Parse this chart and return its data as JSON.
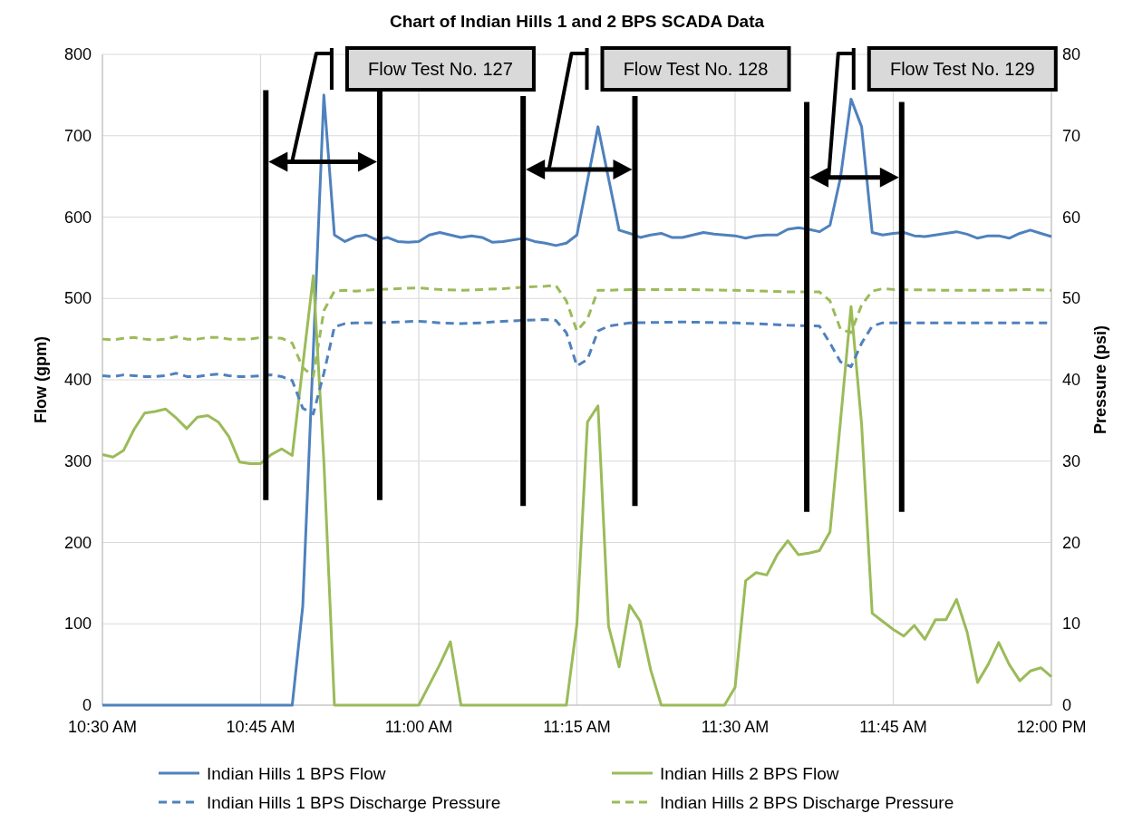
{
  "chart_data": {
    "type": "line",
    "title": "Chart of Indian Hills 1 and 2 BPS SCADA Data",
    "ylabel": "Flow (gpm)",
    "y2label": "Pressure (psi)",
    "xlim": [
      10.5,
      12
    ],
    "xticks": [
      {
        "value": 10.5,
        "label": "10:30 AM"
      },
      {
        "value": 10.75,
        "label": "10:45 AM"
      },
      {
        "value": 11,
        "label": "11:00 AM"
      },
      {
        "value": 11.25,
        "label": "11:15 AM"
      },
      {
        "value": 11.5,
        "label": "11:30 AM"
      },
      {
        "value": 11.75,
        "label": "11:45 AM"
      },
      {
        "value": 12,
        "label": "12:00 PM"
      }
    ],
    "ylim": [
      0,
      800
    ],
    "yticks": [
      0,
      100,
      200,
      300,
      400,
      500,
      600,
      700,
      800
    ],
    "y2lim": [
      0,
      80
    ],
    "y2ticks": [
      0,
      10,
      20,
      30,
      40,
      50,
      60,
      70,
      80
    ],
    "grid": true,
    "legend": "bottom",
    "ref_lines": [
      {
        "axis": "x",
        "value": 10.7583,
        "label": "Flow Test No. 127",
        "color": "#000000"
      },
      {
        "axis": "x",
        "value": 10.9383,
        "color": "#000000"
      },
      {
        "axis": "x",
        "value": 11.165,
        "label": "Flow Test No. 128",
        "color": "#000000"
      },
      {
        "axis": "x",
        "value": 11.3417,
        "color": "#000000"
      },
      {
        "axis": "x",
        "value": 11.6133,
        "label": "Flow Test No. 129",
        "color": "#000000"
      },
      {
        "axis": "x",
        "value": 11.7633,
        "color": "#000000"
      }
    ],
    "series": [
      {
        "name": "Indian Hills 1 BPS Flow",
        "color": "#4f81bd",
        "line_style": "solid",
        "x": [
          10.5,
          10.8,
          10.8167,
          10.85,
          10.8667,
          10.8833,
          10.9,
          10.9167,
          10.9333,
          10.95,
          10.9667,
          10.9833,
          11,
          11.0167,
          11.0333,
          11.05,
          11.0667,
          11.0833,
          11.1,
          11.1167,
          11.1333,
          11.15,
          11.1667,
          11.1833,
          11.2,
          11.2167,
          11.2333,
          11.25,
          11.2833,
          11.3167,
          11.3333,
          11.35,
          11.3667,
          11.3833,
          11.4,
          11.4167,
          11.4333,
          11.45,
          11.4667,
          11.4833,
          11.5,
          11.5167,
          11.5333,
          11.55,
          11.5667,
          11.5833,
          11.6,
          11.6167,
          11.6333,
          11.65,
          11.6667,
          11.6833,
          11.7,
          11.7167,
          11.7333,
          11.75,
          11.7667,
          11.7833,
          11.8,
          11.8167,
          11.8333,
          11.85,
          11.8667,
          11.8833,
          11.9,
          11.9167,
          11.9333,
          11.95,
          11.9667,
          11.9833,
          12
        ],
        "values": [
          0,
          0,
          122,
          750,
          578,
          570,
          576,
          578,
          572,
          575,
          570,
          569,
          570,
          578,
          581,
          578,
          575,
          577,
          575,
          569,
          570,
          572,
          574,
          570,
          568,
          565,
          568,
          578,
          711,
          584,
          580,
          575,
          578,
          580,
          575,
          575,
          578,
          581,
          579,
          578,
          577,
          574,
          577,
          578,
          578,
          585,
          587,
          585,
          582,
          590,
          649,
          745,
          711,
          581,
          578,
          580,
          581,
          577,
          576,
          578,
          580,
          582,
          579,
          574,
          577,
          577,
          574,
          580,
          584,
          580,
          576
        ]
      },
      {
        "name": "Indian Hills 2 BPS Flow",
        "color": "#9bbb59",
        "line_style": "solid",
        "x": [
          10.5,
          10.5167,
          10.5333,
          10.55,
          10.5667,
          10.5833,
          10.6,
          10.6167,
          10.6333,
          10.65,
          10.6667,
          10.6833,
          10.7,
          10.7167,
          10.7333,
          10.75,
          10.7667,
          10.7833,
          10.8,
          10.8333,
          10.85,
          10.8667,
          11,
          11.0333,
          11.05,
          11.0667,
          11.2333,
          11.25,
          11.2667,
          11.2833,
          11.3,
          11.3167,
          11.3333,
          11.35,
          11.3667,
          11.3833,
          11.4833,
          11.5,
          11.5167,
          11.5333,
          11.55,
          11.5667,
          11.5833,
          11.6,
          11.6167,
          11.6333,
          11.65,
          11.6667,
          11.6833,
          11.7,
          11.7167,
          11.7333,
          11.75,
          11.7667,
          11.7833,
          11.8,
          11.8167,
          11.8333,
          11.85,
          11.8667,
          11.8833,
          11.9,
          11.9167,
          11.9333,
          11.95,
          11.9667,
          11.9833,
          12
        ],
        "values": [
          308,
          305,
          313,
          339,
          359,
          361,
          364,
          353,
          340,
          354,
          356,
          348,
          330,
          299,
          297,
          297,
          308,
          315,
          307,
          528,
          300,
          0,
          0,
          50,
          78,
          0,
          0,
          100,
          348,
          368,
          97,
          47,
          123,
          103,
          43,
          0,
          0,
          22,
          153,
          163,
          160,
          185,
          202,
          185,
          187,
          190,
          213,
          350,
          490,
          345,
          113,
          103,
          93,
          85,
          98,
          81,
          105,
          105,
          130,
          90,
          28,
          50,
          77,
          50,
          30,
          42,
          46,
          35
        ]
      },
      {
        "name": "Indian Hills 1 BPS Discharge Pressure",
        "color": "#4f81bd",
        "line_style": "dashed",
        "axis": "y2",
        "x": [
          10.5,
          10.5167,
          10.5333,
          10.55,
          10.5667,
          10.5833,
          10.6,
          10.6167,
          10.6333,
          10.65,
          10.6667,
          10.6833,
          10.7,
          10.7167,
          10.7333,
          10.75,
          10.7667,
          10.7833,
          10.8,
          10.8167,
          10.8333,
          10.85,
          10.8667,
          10.8833,
          10.9,
          10.9333,
          10.9667,
          11,
          11.0333,
          11.0667,
          11.1,
          11.1333,
          11.1667,
          11.2,
          11.2167,
          11.2333,
          11.25,
          11.2667,
          11.2833,
          11.3,
          11.3167,
          11.3333,
          11.4167,
          11.5,
          11.5333,
          11.5833,
          11.6333,
          11.65,
          11.6667,
          11.6833,
          11.7,
          11.7167,
          11.7333,
          11.8333,
          11.9167,
          12
        ],
        "values": [
          40.5,
          40.4,
          40.6,
          40.5,
          40.4,
          40.4,
          40.5,
          40.8,
          40.4,
          40.4,
          40.6,
          40.7,
          40.5,
          40.4,
          40.4,
          40.5,
          40.6,
          40.4,
          39.9,
          36.5,
          35.8,
          40.8,
          46.5,
          46.9,
          47,
          47,
          47.1,
          47.2,
          47,
          46.9,
          47,
          47.2,
          47.3,
          47.4,
          47.3,
          45.8,
          41.7,
          42.5,
          46,
          46.6,
          46.8,
          47,
          47.1,
          47,
          46.9,
          46.7,
          46.6,
          44.5,
          42.2,
          41.6,
          44.5,
          46.6,
          47,
          47,
          47,
          47
        ]
      },
      {
        "name": "Indian Hills 2 BPS Discharge Pressure",
        "color": "#9bbb59",
        "line_style": "dashed",
        "axis": "y2",
        "x": [
          10.5,
          10.5167,
          10.5333,
          10.55,
          10.5667,
          10.5833,
          10.6,
          10.6167,
          10.6333,
          10.65,
          10.6667,
          10.6833,
          10.7,
          10.7167,
          10.7333,
          10.75,
          10.7667,
          10.7833,
          10.8,
          10.8167,
          10.8333,
          10.85,
          10.8667,
          10.8833,
          10.9,
          10.9333,
          10.9667,
          11,
          11.0333,
          11.0667,
          11.1,
          11.1333,
          11.1667,
          11.2,
          11.2167,
          11.2333,
          11.25,
          11.2667,
          11.2833,
          11.3,
          11.3333,
          11.4167,
          11.5,
          11.55,
          11.5833,
          11.6167,
          11.6333,
          11.65,
          11.6667,
          11.6833,
          11.7,
          11.7167,
          11.7333,
          11.75,
          11.8333,
          11.9167,
          11.9667,
          12
        ],
        "values": [
          45,
          44.9,
          45.1,
          45.2,
          45,
          44.9,
          45,
          45.3,
          45,
          45,
          45.2,
          45.2,
          45,
          45,
          45,
          45.2,
          45.2,
          45.1,
          44.5,
          41.5,
          40.4,
          48.5,
          50.9,
          51,
          50.9,
          51.1,
          51.2,
          51.3,
          51.1,
          51,
          51.1,
          51.2,
          51.4,
          51.5,
          51.6,
          49.7,
          46,
          47.5,
          51,
          51,
          51.1,
          51.1,
          51,
          50.9,
          50.8,
          50.8,
          50.8,
          49.7,
          46.2,
          45.8,
          49.2,
          50.9,
          51.2,
          51.1,
          51,
          51,
          51.1,
          51
        ]
      }
    ]
  }
}
